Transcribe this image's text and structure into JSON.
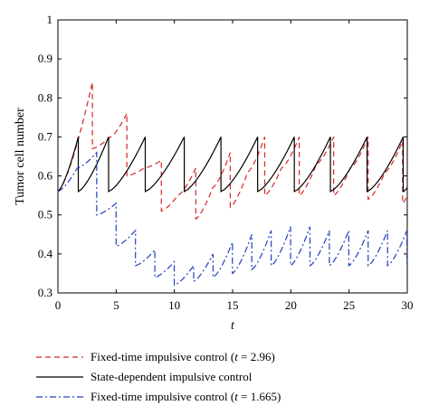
{
  "chart_data": {
    "type": "line",
    "title": "",
    "xlabel": "t",
    "ylabel": "Tumor cell number",
    "xlim": [
      0,
      30
    ],
    "ylim": [
      0.3,
      1.0
    ],
    "xticks": [
      "0",
      "5",
      "10",
      "15",
      "20",
      "25",
      "30"
    ],
    "yticks": [
      "0.3",
      "0.4",
      "0.5",
      "0.6",
      "0.7",
      "0.8",
      "0.9",
      "1"
    ],
    "grid": false,
    "legend_placement": "below",
    "series": [
      {
        "name": "Fixed-time impulsive control (t = 2.96)",
        "color": "#d62728",
        "style": "dashed",
        "x": [
          0,
          2.96,
          2.96,
          4.5,
          5.92,
          5.92,
          7.4,
          8.88,
          8.88,
          10.3,
          11.84,
          11.84,
          13.3,
          14.8,
          14.8,
          16.3,
          17.76,
          17.76,
          19.2,
          20.72,
          20.72,
          22.2,
          23.68,
          23.68,
          25.1,
          26.64,
          26.64,
          28.1,
          29.6,
          29.6,
          30
        ],
        "y": [
          0.56,
          0.84,
          0.67,
          0.7,
          0.76,
          0.6,
          0.62,
          0.64,
          0.51,
          0.55,
          0.62,
          0.49,
          0.57,
          0.66,
          0.52,
          0.61,
          0.7,
          0.55,
          0.62,
          0.7,
          0.55,
          0.63,
          0.7,
          0.55,
          0.62,
          0.7,
          0.54,
          0.61,
          0.69,
          0.53,
          0.55
        ]
      },
      {
        "name": "State-dependent impulsive control",
        "color": "#000000",
        "style": "solid",
        "x": [
          0,
          1.75,
          1.75,
          4.35,
          4.35,
          7.5,
          7.5,
          10.85,
          10.85,
          14.0,
          14.0,
          17.15,
          17.15,
          20.3,
          20.3,
          23.4,
          23.4,
          26.55,
          26.55,
          29.65,
          29.65,
          30
        ],
        "y": [
          0.56,
          0.7,
          0.56,
          0.7,
          0.56,
          0.7,
          0.56,
          0.7,
          0.56,
          0.7,
          0.56,
          0.7,
          0.56,
          0.7,
          0.56,
          0.7,
          0.56,
          0.7,
          0.56,
          0.7,
          0.56,
          0.57
        ]
      },
      {
        "name": "Fixed-time impulsive control (t = 1.665)",
        "color": "#1f3fbf",
        "style": "dashdot",
        "x": [
          0,
          1.665,
          3.33,
          3.33,
          4.995,
          4.995,
          6.66,
          6.66,
          8.325,
          8.325,
          9.99,
          9.99,
          11.655,
          11.655,
          13.32,
          13.32,
          14.985,
          14.985,
          16.65,
          16.65,
          18.315,
          18.315,
          19.98,
          19.98,
          21.645,
          21.645,
          23.31,
          23.31,
          24.975,
          24.975,
          26.64,
          26.64,
          28.305,
          28.305,
          29.97,
          29.97,
          30
        ],
        "y": [
          0.56,
          0.62,
          0.66,
          0.5,
          0.53,
          0.42,
          0.46,
          0.37,
          0.41,
          0.34,
          0.38,
          0.32,
          0.37,
          0.33,
          0.4,
          0.34,
          0.43,
          0.35,
          0.45,
          0.36,
          0.46,
          0.37,
          0.47,
          0.37,
          0.47,
          0.37,
          0.46,
          0.37,
          0.46,
          0.37,
          0.46,
          0.37,
          0.46,
          0.37,
          0.46,
          0.37,
          0.37
        ]
      }
    ]
  },
  "legend": {
    "items": [
      {
        "prefix": "Fixed-time impulsive control (",
        "var": "t",
        "suffix": " = 2.96)"
      },
      {
        "prefix": "State-dependent impulsive control",
        "var": "",
        "suffix": ""
      },
      {
        "prefix": "Fixed-time impulsive control (",
        "var": "t",
        "suffix": " = 1.665)"
      }
    ]
  }
}
